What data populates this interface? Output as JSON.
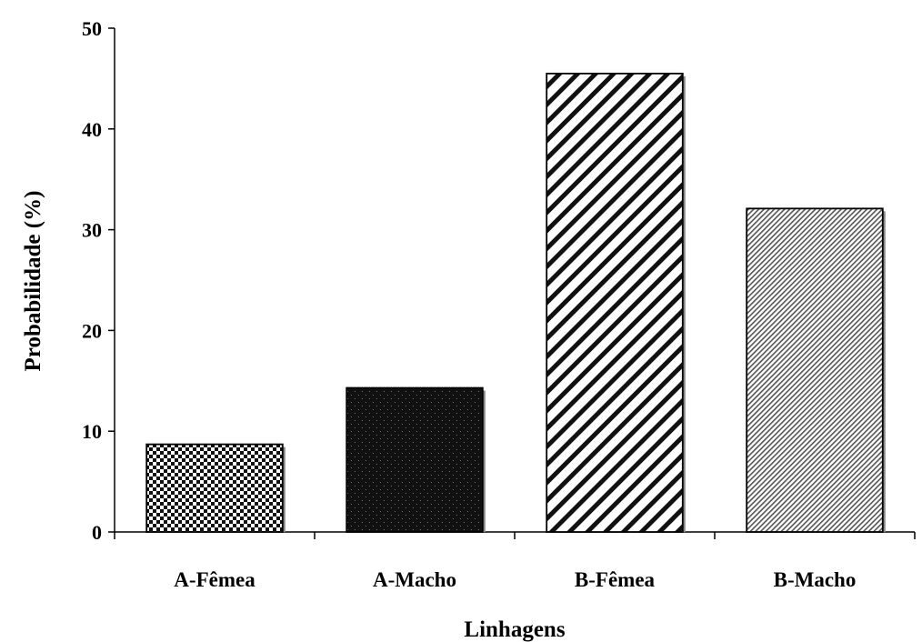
{
  "chart_data": {
    "type": "bar",
    "xlabel": "Linhagens",
    "ylabel": "Probabilidade (%)",
    "categories": [
      "A-Fêmea",
      "A-Macho",
      "B-Fêmea",
      "B-Macho"
    ],
    "values": [
      8.7,
      14.3,
      45.5,
      32.1
    ],
    "ylim": [
      0,
      50
    ],
    "yticks": [
      "0",
      "10",
      "20",
      "30",
      "40",
      "50"
    ],
    "grid": false,
    "legend": "none",
    "bar_patterns": [
      "checker",
      "dark-dotted",
      "wide-diagonal",
      "fine-diagonal"
    ]
  }
}
